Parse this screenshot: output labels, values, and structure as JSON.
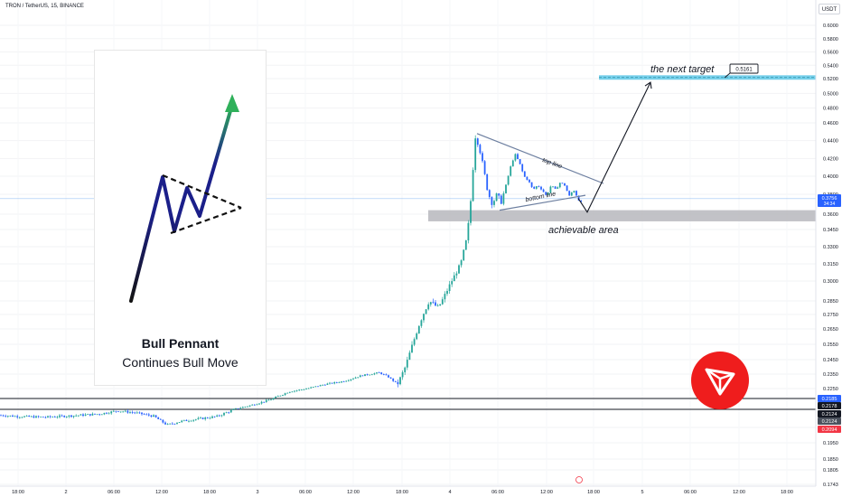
{
  "header": {
    "symbol_line": "TRON / TetherUS, 15, BINANCE",
    "currency": "USDT"
  },
  "colors": {
    "up": "#26a69a",
    "down": "#2962ff",
    "target_zone": "#5fc8e8",
    "support_zone": "#b7b7bd",
    "tron_red": "#ef1d1d",
    "arrow_green": "#2fb05a",
    "pennant_blue": "#1b1f8a"
  },
  "illustration": {
    "title": "Bull Pennant",
    "subtitle": "Continues Bull Move"
  },
  "annotations": {
    "target_label": "the next target",
    "target_value": "0.5161",
    "area_label": "achievable area",
    "top_line_label": "top line",
    "bottom_line_label": "bottom line"
  },
  "chart_data": {
    "type": "candlestick",
    "title": "TRON / TetherUS, 15, BINANCE",
    "ylim": [
      0.1743,
      0.6159
    ],
    "y_ticks": [
      "0.6000",
      "0.5800",
      "0.5600",
      "0.5400",
      "0.5200",
      "0.5000",
      "0.4800",
      "0.4600",
      "0.4400",
      "0.4200",
      "0.4000",
      "0.3800",
      "0.3600",
      "0.3450",
      "0.3300",
      "0.3150",
      "0.3000",
      "0.2850",
      "0.2750",
      "0.2650",
      "0.2550",
      "0.2450",
      "0.2350",
      "0.2250",
      "0.2050",
      "0.1950",
      "0.1850",
      "0.1805",
      "0.1743"
    ],
    "x_ticks": [
      "18:00",
      "2",
      "06:00",
      "12:00",
      "18:00",
      "3",
      "06:00",
      "12:00",
      "18:00",
      "4",
      "06:00",
      "12:00",
      "18:00",
      "5",
      "06:00",
      "12:00",
      "18:00"
    ],
    "price_badges": [
      {
        "value": "0.3756",
        "sub": "34:34",
        "color": "#2962ff"
      },
      {
        "value": "0.2185",
        "color": "#2962ff"
      },
      {
        "value": "0.2178",
        "color": "#131722"
      },
      {
        "value": "0.2124",
        "color": "#131722"
      },
      {
        "value": "0.2124",
        "color": "#4c525e"
      },
      {
        "value": "0.2094",
        "color": "#f23645"
      }
    ],
    "horizontal_lines": [
      0.2185,
      0.2124
    ],
    "zones": [
      {
        "name": "target",
        "from": 0.5185,
        "to": 0.525
      },
      {
        "name": "support",
        "from": 0.353,
        "to": 0.364
      }
    ],
    "price_path": [
      [
        0,
        0.21
      ],
      [
        20,
        0.2095
      ],
      [
        50,
        0.2092
      ],
      [
        80,
        0.2098
      ],
      [
        110,
        0.2105
      ],
      [
        130,
        0.2118
      ],
      [
        150,
        0.211
      ],
      [
        170,
        0.2096
      ],
      [
        185,
        0.206
      ],
      [
        200,
        0.2075
      ],
      [
        220,
        0.2085
      ],
      [
        240,
        0.2095
      ],
      [
        260,
        0.2125
      ],
      [
        280,
        0.215
      ],
      [
        300,
        0.218
      ],
      [
        320,
        0.223
      ],
      [
        340,
        0.225
      ],
      [
        360,
        0.228
      ],
      [
        380,
        0.23
      ],
      [
        400,
        0.234
      ],
      [
        420,
        0.236
      ],
      [
        430,
        0.233
      ],
      [
        440,
        0.228
      ],
      [
        448,
        0.239
      ],
      [
        455,
        0.252
      ],
      [
        465,
        0.27
      ],
      [
        475,
        0.285
      ],
      [
        485,
        0.28
      ],
      [
        490,
        0.286
      ],
      [
        500,
        0.3
      ],
      [
        510,
        0.315
      ],
      [
        516,
        0.335
      ],
      [
        520,
        0.36
      ],
      [
        523,
        0.4
      ],
      [
        526,
        0.445
      ],
      [
        530,
        0.435
      ],
      [
        535,
        0.41
      ],
      [
        540,
        0.382
      ],
      [
        545,
        0.37
      ],
      [
        550,
        0.38
      ],
      [
        555,
        0.372
      ],
      [
        560,
        0.39
      ],
      [
        565,
        0.41
      ],
      [
        570,
        0.425
      ],
      [
        575,
        0.415
      ],
      [
        580,
        0.4
      ],
      [
        585,
        0.395
      ],
      [
        590,
        0.385
      ],
      [
        595,
        0.39
      ],
      [
        600,
        0.385
      ],
      [
        605,
        0.378
      ],
      [
        610,
        0.39
      ],
      [
        615,
        0.385
      ],
      [
        620,
        0.393
      ],
      [
        625,
        0.39
      ],
      [
        630,
        0.378
      ],
      [
        635,
        0.385
      ],
      [
        640,
        0.375
      ],
      [
        645,
        0.37
      ]
    ],
    "projection": [
      [
        650,
        0.362
      ],
      [
        720,
        0.515
      ]
    ],
    "pennant": {
      "top_line": [
        [
          528,
          0.448
        ],
        [
          668,
          0.392
        ]
      ],
      "bottom_line": [
        [
          553,
          0.364
        ],
        [
          648,
          0.379
        ]
      ]
    }
  }
}
